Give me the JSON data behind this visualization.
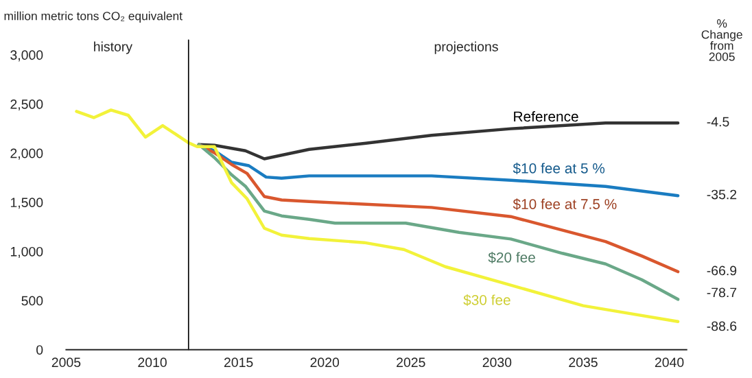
{
  "chart_data": {
    "type": "line",
    "ylabel": "million metric tons CO₂ equivalent",
    "xlim": [
      2005,
      2041
    ],
    "xticks": [
      2005,
      2010,
      2015,
      2020,
      2025,
      2030,
      2035,
      2040
    ],
    "ylim": [
      0,
      3000
    ],
    "yticks": [
      0,
      500,
      {
        "value": 1000,
        "label": "1,000"
      },
      {
        "value": 1500,
        "label": "1,500"
      },
      {
        "value": 2000,
        "label": "2,000"
      },
      {
        "value": 2500,
        "label": "2,500"
      },
      {
        "value": 3000,
        "label": "3,000"
      }
    ],
    "grid": false,
    "legend": false,
    "marker": "none",
    "line_style": "solid",
    "ref_lines": [
      {
        "axis": "x",
        "value": 2012.1,
        "color": "#000000"
      }
    ],
    "series": [
      {
        "name": "Reference",
        "color": "#333333",
        "x": [
          2012.7,
          2013.6,
          2015.4,
          2016.5,
          2019.1,
          2022.4,
          2026.2,
          2030.8,
          2036.3,
          2040.5
        ],
        "values": [
          2087,
          2080,
          2024,
          1942,
          2038,
          2100,
          2181,
          2248,
          2307,
          2307
        ]
      },
      {
        "name": "$10 fee at 5 %",
        "color": "#1a7cc1",
        "x": [
          2012.7,
          2013.6,
          2014.6,
          2015.6,
          2016.6,
          2017.5,
          2019.1,
          2026.2,
          2030.8,
          2036.3,
          2040.5
        ],
        "values": [
          2087,
          2024,
          1907,
          1872,
          1756,
          1745,
          1768,
          1768,
          1724,
          1661,
          1567
        ]
      },
      {
        "name": "$10 fee at 7.5 %",
        "color": "#d9572e",
        "x": [
          2012.7,
          2013.6,
          2014.6,
          2015.5,
          2016.5,
          2017.5,
          2019.1,
          2026.2,
          2030.8,
          2036.3,
          2038.4,
          2040.5
        ],
        "values": [
          2087,
          2003,
          1884,
          1793,
          1558,
          1523,
          1507,
          1447,
          1354,
          1100,
          953,
          793
        ]
      },
      {
        "name": "$20 fee",
        "color": "#6aa888",
        "x": [
          2012.7,
          2013.6,
          2014.6,
          2015.4,
          2016.5,
          2017.5,
          2019.1,
          2020.6,
          2024.7,
          2027.8,
          2030.8,
          2033.8,
          2036.3,
          2038.4,
          2040.5
        ],
        "values": [
          2087,
          1954,
          1779,
          1663,
          1410,
          1361,
          1326,
          1287,
          1287,
          1193,
          1126,
          980,
          872,
          712,
          512
        ]
      },
      {
        "name": "$30 fee",
        "color": "#f2f23a",
        "x": [
          2005.6,
          2006.6,
          2007.6,
          2008.6,
          2009.6,
          2010.6,
          2012.1,
          2012.6,
          2013.6,
          2014.6,
          2015.5,
          2016.5,
          2017.5,
          2019.1,
          2022.3,
          2024.6,
          2027,
          2030.2,
          2035,
          2036.9,
          2040.5
        ],
        "values": [
          2424,
          2361,
          2438,
          2385,
          2163,
          2280,
          2105,
          2066,
          2066,
          1698,
          1535,
          1235,
          1165,
          1130,
          1089,
          1019,
          844,
          686,
          447,
          391,
          286
        ]
      }
    ],
    "annotations": [
      "history",
      "projections",
      "%\nChange\nfrom\n2005",
      "-4.5",
      "-35.2",
      "-66.9",
      "-78.7",
      "-88.6"
    ]
  }
}
